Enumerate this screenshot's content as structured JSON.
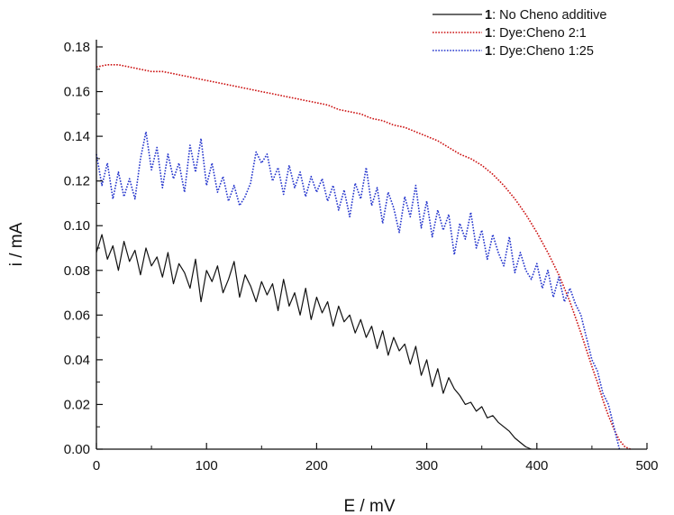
{
  "chart_data": {
    "type": "line",
    "title": "",
    "xlabel": "E / mV",
    "ylabel": "i / mA",
    "xlim": [
      0,
      500
    ],
    "ylim": [
      0,
      0.18
    ],
    "x_ticks": [
      0,
      100,
      200,
      300,
      400,
      500
    ],
    "x_tick_labels": [
      "0",
      "100",
      "200",
      "300",
      "400",
      "500"
    ],
    "y_ticks": [
      0,
      0.02,
      0.04,
      0.06,
      0.08,
      0.1,
      0.12,
      0.14,
      0.16,
      0.18
    ],
    "y_tick_labels": [
      "0.00",
      "0.02",
      "0.04",
      "0.06",
      "0.08",
      "0.10",
      "0.12",
      "0.14",
      "0.16",
      "0.18"
    ],
    "grid": false,
    "legend_position": "top-right",
    "series": [
      {
        "name": "No Cheno additive",
        "legend_prefix": "1",
        "legend_suffix": ": No Cheno additive",
        "color": "#111111",
        "style": "solid",
        "x": [
          0,
          5,
          10,
          15,
          20,
          25,
          30,
          35,
          40,
          45,
          50,
          55,
          60,
          65,
          70,
          75,
          80,
          85,
          90,
          95,
          100,
          105,
          110,
          115,
          120,
          125,
          130,
          135,
          140,
          145,
          150,
          155,
          160,
          165,
          170,
          175,
          180,
          185,
          190,
          195,
          200,
          205,
          210,
          215,
          220,
          225,
          230,
          235,
          240,
          245,
          250,
          255,
          260,
          265,
          270,
          275,
          280,
          285,
          290,
          295,
          300,
          305,
          310,
          315,
          320,
          325,
          330,
          335,
          340,
          345,
          350,
          355,
          360,
          365,
          370,
          375,
          380,
          385,
          390,
          395
        ],
        "y": [
          0.088,
          0.096,
          0.085,
          0.091,
          0.08,
          0.093,
          0.084,
          0.089,
          0.078,
          0.09,
          0.082,
          0.086,
          0.077,
          0.088,
          0.074,
          0.083,
          0.079,
          0.072,
          0.085,
          0.066,
          0.08,
          0.075,
          0.082,
          0.07,
          0.076,
          0.084,
          0.068,
          0.078,
          0.073,
          0.066,
          0.075,
          0.069,
          0.074,
          0.062,
          0.076,
          0.064,
          0.07,
          0.06,
          0.072,
          0.058,
          0.068,
          0.061,
          0.066,
          0.055,
          0.064,
          0.057,
          0.06,
          0.052,
          0.058,
          0.05,
          0.055,
          0.045,
          0.053,
          0.042,
          0.05,
          0.044,
          0.047,
          0.038,
          0.046,
          0.033,
          0.04,
          0.028,
          0.036,
          0.025,
          0.032,
          0.027,
          0.024,
          0.02,
          0.021,
          0.017,
          0.019,
          0.014,
          0.015,
          0.012,
          0.01,
          0.008,
          0.005,
          0.003,
          0.001,
          0.0
        ]
      },
      {
        "name": "Dye:Cheno 2:1",
        "legend_prefix": "1",
        "legend_suffix": ": Dye:Cheno 2:1",
        "color": "#cc1111",
        "style": "dotted",
        "x": [
          0,
          10,
          20,
          30,
          40,
          50,
          60,
          70,
          80,
          90,
          100,
          110,
          120,
          130,
          140,
          150,
          160,
          170,
          180,
          190,
          200,
          210,
          220,
          230,
          240,
          250,
          260,
          270,
          280,
          290,
          300,
          310,
          320,
          330,
          340,
          350,
          360,
          370,
          380,
          390,
          400,
          410,
          420,
          430,
          440,
          450,
          455,
          460,
          465,
          470,
          475,
          480,
          485
        ],
        "y": [
          0.171,
          0.172,
          0.172,
          0.171,
          0.17,
          0.169,
          0.169,
          0.168,
          0.167,
          0.166,
          0.165,
          0.164,
          0.163,
          0.162,
          0.161,
          0.16,
          0.159,
          0.158,
          0.157,
          0.156,
          0.155,
          0.154,
          0.152,
          0.151,
          0.15,
          0.148,
          0.147,
          0.145,
          0.144,
          0.142,
          0.14,
          0.138,
          0.135,
          0.132,
          0.13,
          0.127,
          0.123,
          0.118,
          0.112,
          0.105,
          0.097,
          0.088,
          0.078,
          0.066,
          0.052,
          0.037,
          0.03,
          0.022,
          0.015,
          0.009,
          0.004,
          0.001,
          0.0
        ]
      },
      {
        "name": "Dye:Cheno 1:25",
        "legend_prefix": "1",
        "legend_suffix": ": Dye:Cheno 1:25",
        "color": "#2233cc",
        "style": "dotted",
        "x": [
          0,
          5,
          10,
          15,
          20,
          25,
          30,
          35,
          40,
          45,
          50,
          55,
          60,
          65,
          70,
          75,
          80,
          85,
          90,
          95,
          100,
          105,
          110,
          115,
          120,
          125,
          130,
          135,
          140,
          145,
          150,
          155,
          160,
          165,
          170,
          175,
          180,
          185,
          190,
          195,
          200,
          205,
          210,
          215,
          220,
          225,
          230,
          235,
          240,
          245,
          250,
          255,
          260,
          265,
          270,
          275,
          280,
          285,
          290,
          295,
          300,
          305,
          310,
          315,
          320,
          325,
          330,
          335,
          340,
          345,
          350,
          355,
          360,
          365,
          370,
          375,
          380,
          385,
          390,
          395,
          400,
          405,
          410,
          415,
          420,
          425,
          430,
          435,
          440,
          445,
          450,
          455,
          460,
          465,
          470,
          475
        ],
        "y": [
          0.132,
          0.118,
          0.128,
          0.112,
          0.124,
          0.113,
          0.121,
          0.112,
          0.13,
          0.142,
          0.125,
          0.135,
          0.117,
          0.132,
          0.121,
          0.128,
          0.115,
          0.136,
          0.124,
          0.139,
          0.118,
          0.128,
          0.115,
          0.122,
          0.111,
          0.118,
          0.109,
          0.113,
          0.119,
          0.133,
          0.128,
          0.132,
          0.12,
          0.126,
          0.114,
          0.127,
          0.117,
          0.124,
          0.113,
          0.122,
          0.115,
          0.121,
          0.111,
          0.118,
          0.107,
          0.116,
          0.104,
          0.119,
          0.112,
          0.126,
          0.109,
          0.117,
          0.101,
          0.115,
          0.108,
          0.097,
          0.113,
          0.104,
          0.118,
          0.099,
          0.111,
          0.095,
          0.107,
          0.098,
          0.105,
          0.087,
          0.101,
          0.094,
          0.106,
          0.09,
          0.098,
          0.085,
          0.096,
          0.088,
          0.082,
          0.095,
          0.079,
          0.088,
          0.08,
          0.076,
          0.083,
          0.072,
          0.08,
          0.068,
          0.077,
          0.066,
          0.072,
          0.065,
          0.06,
          0.05,
          0.04,
          0.035,
          0.025,
          0.02,
          0.01,
          0.0
        ]
      }
    ]
  }
}
